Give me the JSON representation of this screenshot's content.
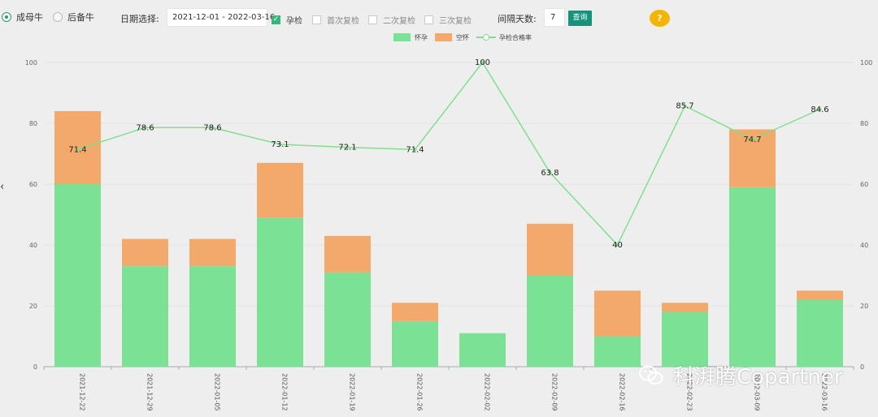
{
  "toolbar": {
    "radio_options": [
      {
        "label": "成母牛",
        "checked": true
      },
      {
        "label": "后备牛",
        "checked": false
      }
    ],
    "date_label": "日期选择:",
    "date_range": "2021-12-01 - 2022-03-16",
    "checks": [
      {
        "label": "孕检",
        "checked": true
      },
      {
        "label": "首次复检",
        "checked": false
      },
      {
        "label": "二次复检",
        "checked": false
      },
      {
        "label": "三次复检",
        "checked": false
      }
    ],
    "interval_label": "间隔天数:",
    "interval_value": "7",
    "query_label": "查询",
    "help_label": "?"
  },
  "watermark": "科湃腾Copartner",
  "colors": {
    "pregnant": "#7be295",
    "empty": "#f2a96b",
    "rate": "#7fe08f",
    "accent": "#15937b"
  },
  "chart_data": {
    "type": "bar",
    "categories": [
      "2021-12-22",
      "2021-12-29",
      "2022-01-05",
      "2022-01-12",
      "2022-01-19",
      "2022-01-26",
      "2022-02-02",
      "2022-02-09",
      "2022-02-16",
      "2022-02-23",
      "2022-03-09",
      "2022-03-16"
    ],
    "category_labels": [
      "2021-12-22",
      "2021-12-29",
      "2022-01-05",
      "2022-01-12",
      "2022-01-19",
      "2022-01-26",
      "2022-02-02",
      "2022-02-09",
      "2022-02-16",
      "2022-02-23",
      "2022-03-09",
      "2022-03-16"
    ],
    "series": [
      {
        "name": "怀孕",
        "type": "bar",
        "stack": true,
        "values": [
          60,
          33,
          33,
          49,
          31,
          15,
          11,
          30,
          10,
          18,
          59,
          22
        ]
      },
      {
        "name": "空怀",
        "type": "bar",
        "stack": true,
        "values": [
          24,
          9,
          9,
          18,
          12,
          6,
          0,
          17,
          15,
          3,
          19,
          3
        ]
      },
      {
        "name": "孕检合格率",
        "type": "line",
        "values": [
          71.4,
          78.6,
          78.6,
          73.1,
          72.1,
          71.4,
          100,
          63.8,
          40,
          85.7,
          74.7,
          84.6
        ],
        "value_labels": [
          "71.4",
          "78.6",
          "78.6",
          "73.1",
          "72.1",
          "71.4",
          "100",
          "63.8",
          "40",
          "85.7",
          "74.7",
          "84.6"
        ]
      }
    ],
    "ylim": [
      0,
      100
    ],
    "yticks": [
      "0",
      "20",
      "40",
      "60",
      "80",
      "100"
    ],
    "y2lim": [
      0,
      100
    ],
    "grid": true,
    "legend": "top-center"
  }
}
